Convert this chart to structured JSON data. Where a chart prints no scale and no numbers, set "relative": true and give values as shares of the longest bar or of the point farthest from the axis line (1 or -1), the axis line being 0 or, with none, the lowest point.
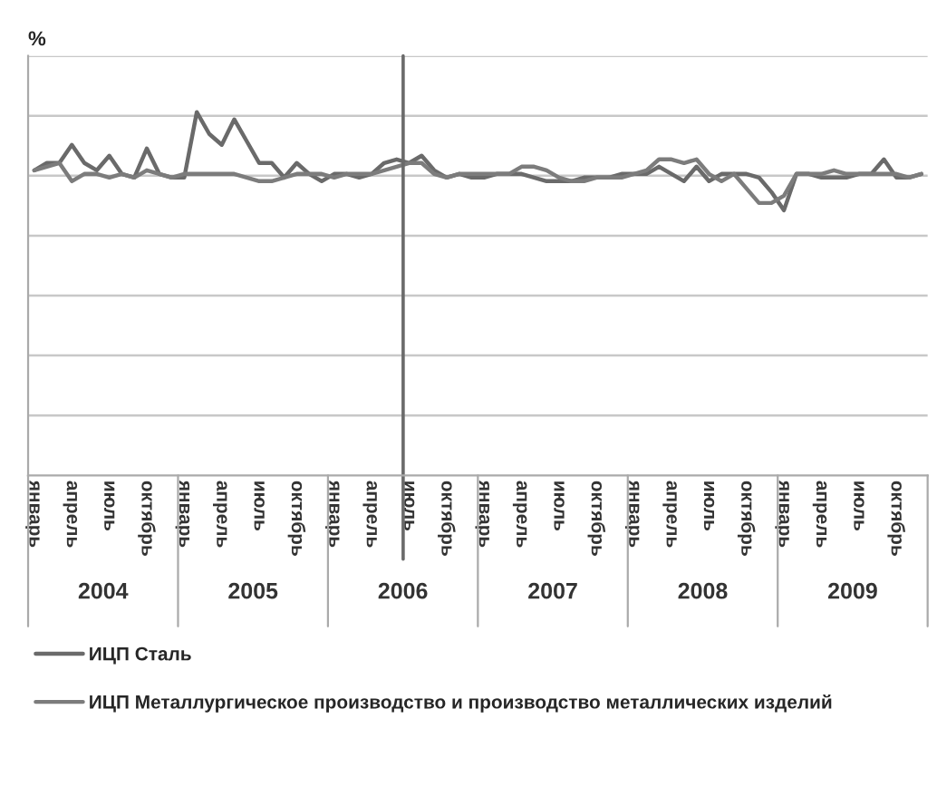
{
  "chart_data": {
    "type": "line",
    "ylabel": "%",
    "relative": true,
    "grid": "y",
    "legend": "bottom",
    "marker": "none",
    "line_style": "solid",
    "categories": [
      "январь",
      null,
      null,
      "апрель",
      null,
      null,
      "июль",
      null,
      null,
      "октябрь",
      null,
      null,
      "январь",
      null,
      null,
      "апрель",
      null,
      null,
      "июль",
      null,
      null,
      "октябрь",
      null,
      null,
      "январь",
      null,
      null,
      "апрель",
      null,
      null,
      "июль",
      null,
      null,
      "октябрь",
      null,
      null,
      "январь",
      null,
      null,
      "апрель",
      null,
      null,
      "июль",
      null,
      null,
      "октябрь",
      null,
      null,
      "январь",
      null,
      null,
      "апрель",
      null,
      null,
      "июль",
      null,
      null,
      "октябрь",
      null,
      null,
      "январь",
      null,
      null,
      "апрель",
      null,
      null,
      "июль",
      null,
      null,
      "октябрь",
      null,
      null
    ],
    "series": [
      {
        "name": "ИЦП Сталь",
        "color": "#6a6a6a",
        "values": [
          0.84,
          0.86,
          0.86,
          0.91,
          0.86,
          0.84,
          0.88,
          0.83,
          0.82,
          0.9,
          0.83,
          0.82,
          0.82,
          1.0,
          0.94,
          0.91,
          0.98,
          0.92,
          0.86,
          0.86,
          0.82,
          0.86,
          0.83,
          0.81,
          0.83,
          0.83,
          0.82,
          0.83,
          0.86,
          0.87,
          0.86,
          0.88,
          0.84,
          0.82,
          0.83,
          0.82,
          0.82,
          0.83,
          0.83,
          0.83,
          0.82,
          0.81,
          0.81,
          0.81,
          0.82,
          0.82,
          0.82,
          0.83,
          0.83,
          0.83,
          0.85,
          0.83,
          0.81,
          0.85,
          0.81,
          0.83,
          0.83,
          0.83,
          0.82,
          0.78,
          0.73,
          0.83,
          0.83,
          0.82,
          0.82,
          0.82,
          0.83,
          0.83,
          0.87,
          0.82,
          0.82,
          0.83
        ]
      },
      {
        "name": "ИЦП Металлургическое производство и производство металлических изделий",
        "color": "#7c7c7c",
        "values": [
          0.84,
          0.85,
          0.86,
          0.81,
          0.83,
          0.83,
          0.82,
          0.83,
          0.82,
          0.84,
          0.83,
          0.82,
          0.83,
          0.83,
          0.83,
          0.83,
          0.83,
          0.82,
          0.81,
          0.81,
          0.82,
          0.83,
          0.83,
          0.83,
          0.82,
          0.83,
          0.83,
          0.83,
          0.84,
          0.85,
          0.86,
          0.86,
          0.83,
          0.82,
          0.83,
          0.83,
          0.83,
          0.83,
          0.83,
          0.85,
          0.85,
          0.84,
          0.82,
          0.81,
          0.81,
          0.82,
          0.82,
          0.82,
          0.83,
          0.84,
          0.87,
          0.87,
          0.86,
          0.87,
          0.83,
          0.81,
          0.83,
          0.79,
          0.75,
          0.75,
          0.77,
          0.83,
          0.83,
          0.83,
          0.84,
          0.83,
          0.83,
          0.83,
          0.83,
          0.83,
          0.82,
          0.83
        ]
      }
    ],
    "annotations": [
      "2004",
      "2005",
      "2006",
      "2007",
      "2008",
      "2009"
    ]
  }
}
